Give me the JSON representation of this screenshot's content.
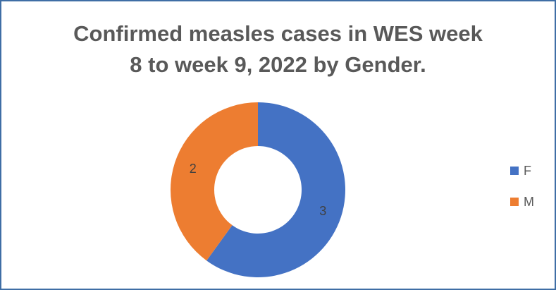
{
  "chart_data": {
    "type": "pie",
    "variant": "doughnut",
    "title_lines": [
      "Confirmed measles cases in WES week",
      "8 to week 9, 2022 by Gender."
    ],
    "categories": [
      "F",
      "M"
    ],
    "values": [
      3,
      2
    ],
    "data_labels": [
      "3",
      "2"
    ],
    "colors": [
      "#4472c4",
      "#ed7d31"
    ],
    "legend_position": "right",
    "start_angle_deg": 0
  }
}
